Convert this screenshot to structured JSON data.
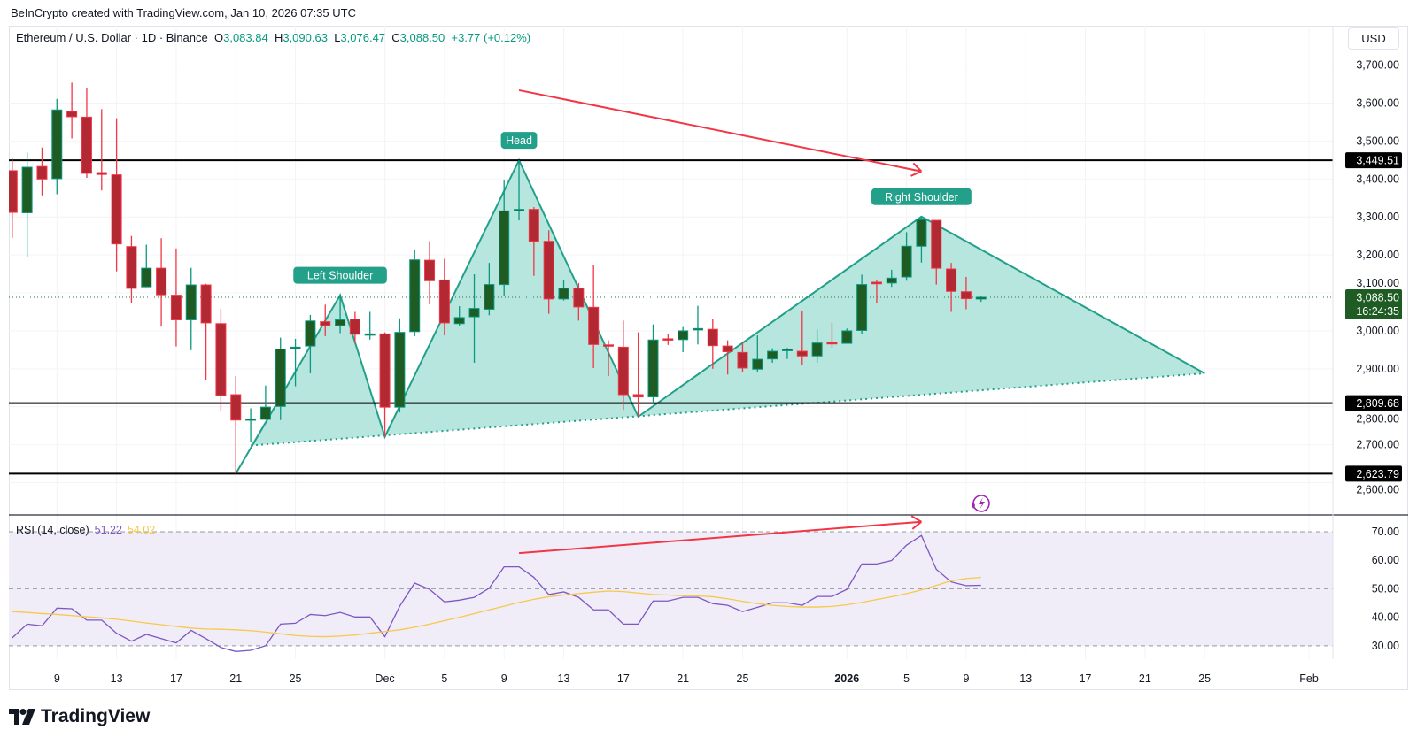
{
  "credit": "BeInCrypto created with TradingView.com, Jan 10, 2026 07:35 UTC",
  "legend": {
    "symbol": "Ethereum / U.S. Dollar · 1D · Binance",
    "o_label": "O",
    "o": "3,083.84",
    "h_label": "H",
    "h": "3,090.63",
    "l_label": "L",
    "l": "3,076.47",
    "c_label": "C",
    "c": "3,088.50",
    "change": "+3.77 (+0.12%)"
  },
  "currency_button": "USD",
  "rsi_legend": {
    "title": "RSI (14, close)",
    "rsi_value": "51.22",
    "ma_value": "54.02"
  },
  "brand": "TradingView",
  "colors": {
    "up_body": "#1e5c24",
    "up_border": "#089981",
    "down_body": "#b22833",
    "down_border": "#f23645",
    "pattern_fill": "#b2e5dc",
    "pattern_line": "#22a08a",
    "arrow": "#f23645",
    "rsi_line": "#7e57c2",
    "rsi_ma": "#f7c948",
    "price_line": "#1e7b3a"
  },
  "chart_data": [
    {
      "type": "candlestick",
      "title": "Ethereum / U.S. Dollar · 1D · Binance",
      "ylim": [
        2515,
        3804
      ],
      "price_ticks": [
        "3,700.00",
        "3,600.00",
        "3,500.00",
        "3,400.00",
        "3,300.00",
        "3,200.00",
        "3,100.00",
        "3,000.00",
        "2,900.00",
        "2,800.00",
        "2,700.00",
        "2,600.00"
      ],
      "price_tick_values": [
        3700,
        3600,
        3500,
        3400,
        3300,
        3200,
        3100,
        3000,
        2900,
        2800,
        2700,
        2600
      ],
      "time_ticks": [
        {
          "date": "2025-11-09",
          "label": "9"
        },
        {
          "date": "2025-11-13",
          "label": "13"
        },
        {
          "date": "2025-11-17",
          "label": "17"
        },
        {
          "date": "2025-11-21",
          "label": "21"
        },
        {
          "date": "2025-11-25",
          "label": "25"
        },
        {
          "date": "2025-12-01",
          "label": "Dec"
        },
        {
          "date": "2025-12-05",
          "label": "5"
        },
        {
          "date": "2025-12-09",
          "label": "9"
        },
        {
          "date": "2025-12-13",
          "label": "13"
        },
        {
          "date": "2025-12-17",
          "label": "17"
        },
        {
          "date": "2025-12-21",
          "label": "21"
        },
        {
          "date": "2025-12-25",
          "label": "25"
        },
        {
          "date": "2026-01-01",
          "label": "2026",
          "bold": true
        },
        {
          "date": "2026-01-05",
          "label": "5"
        },
        {
          "date": "2026-01-09",
          "label": "9"
        },
        {
          "date": "2026-01-13",
          "label": "13"
        },
        {
          "date": "2026-01-17",
          "label": "17"
        },
        {
          "date": "2026-01-21",
          "label": "21"
        },
        {
          "date": "2026-01-25",
          "label": "25"
        },
        {
          "date": "2026-02-01",
          "label": "Feb"
        }
      ],
      "candles_columns": [
        "date",
        "open",
        "high",
        "low",
        "close"
      ],
      "candles": [
        [
          "2025-11-06",
          3422,
          3454,
          3245,
          3312
        ],
        [
          "2025-11-07",
          3311,
          3470,
          3195,
          3431
        ],
        [
          "2025-11-08",
          3433,
          3483,
          3357,
          3400
        ],
        [
          "2025-11-09",
          3401,
          3611,
          3360,
          3582
        ],
        [
          "2025-11-10",
          3578,
          3654,
          3507,
          3564
        ],
        [
          "2025-11-11",
          3563,
          3640,
          3403,
          3415
        ],
        [
          "2025-11-12",
          3417,
          3584,
          3370,
          3412
        ],
        [
          "2025-11-13",
          3411,
          3560,
          3157,
          3229
        ],
        [
          "2025-11-14",
          3222,
          3250,
          3072,
          3112
        ],
        [
          "2025-11-15",
          3116,
          3227,
          3115,
          3165
        ],
        [
          "2025-11-16",
          3165,
          3244,
          3011,
          3095
        ],
        [
          "2025-11-17",
          3094,
          3217,
          2959,
          3029
        ],
        [
          "2025-11-18",
          3029,
          3166,
          2949,
          3121
        ],
        [
          "2025-11-19",
          3121,
          3124,
          2870,
          3021
        ],
        [
          "2025-11-20",
          3019,
          3058,
          2790,
          2830
        ],
        [
          "2025-11-21",
          2832,
          2881,
          2623.79,
          2765
        ],
        [
          "2025-11-22",
          2767,
          2796,
          2707,
          2768
        ],
        [
          "2025-11-23",
          2767,
          2856,
          2766,
          2799
        ],
        [
          "2025-11-24",
          2801,
          2982,
          2765,
          2952
        ],
        [
          "2025-11-25",
          2954,
          2979,
          2854,
          2957
        ],
        [
          "2025-11-26",
          2960,
          3042,
          2888,
          3026
        ],
        [
          "2025-11-27",
          3024,
          3069,
          2986,
          3014
        ],
        [
          "2025-11-28",
          3014,
          3094,
          2994,
          3029
        ],
        [
          "2025-11-29",
          3031,
          3050,
          2967,
          2991
        ],
        [
          "2025-11-30",
          2991,
          3050,
          2977,
          2992
        ],
        [
          "2025-12-01",
          2992,
          2996,
          2721,
          2799
        ],
        [
          "2025-12-02",
          2799,
          3033,
          2785,
          2996
        ],
        [
          "2025-12-03",
          2998,
          3213,
          2986,
          3187
        ],
        [
          "2025-12-04",
          3186,
          3236,
          3070,
          3132
        ],
        [
          "2025-12-05",
          3134,
          3190,
          2988,
          3021
        ],
        [
          "2025-12-06",
          3019,
          3065,
          3014,
          3035
        ],
        [
          "2025-12-07",
          3037,
          3149,
          2916,
          3059
        ],
        [
          "2025-12-08",
          3057,
          3179,
          3041,
          3122
        ],
        [
          "2025-12-09",
          3122,
          3397,
          3091,
          3316
        ],
        [
          "2025-12-10",
          3318,
          3449.51,
          3291,
          3320
        ],
        [
          "2025-12-11",
          3320,
          3326,
          3145,
          3236
        ],
        [
          "2025-12-12",
          3236,
          3265,
          3045,
          3084
        ],
        [
          "2025-12-13",
          3084,
          3134,
          3080,
          3112
        ],
        [
          "2025-12-14",
          3112,
          3126,
          3027,
          3063
        ],
        [
          "2025-12-15",
          3062,
          3174,
          2902,
          2964
        ],
        [
          "2025-12-16",
          2963,
          2975,
          2881,
          2961
        ],
        [
          "2025-12-17",
          2957,
          3027,
          2792,
          2832
        ],
        [
          "2025-12-18",
          2832,
          2996,
          2774,
          2826
        ],
        [
          "2025-12-19",
          2826,
          3017,
          2810,
          2976
        ],
        [
          "2025-12-20",
          2979,
          2991,
          2963,
          2977
        ],
        [
          "2025-12-21",
          2977,
          3010,
          2944,
          3000
        ],
        [
          "2025-12-22",
          3004,
          3066,
          2964,
          3006
        ],
        [
          "2025-12-23",
          3004,
          3031,
          2900,
          2961
        ],
        [
          "2025-12-24",
          2960,
          2975,
          2885,
          2945
        ],
        [
          "2025-12-25",
          2943,
          2968,
          2891,
          2902
        ],
        [
          "2025-12-26",
          2899,
          2988,
          2891,
          2925
        ],
        [
          "2025-12-27",
          2926,
          2954,
          2916,
          2946
        ],
        [
          "2025-12-28",
          2949,
          2955,
          2926,
          2951
        ],
        [
          "2025-12-29",
          2946,
          3053,
          2910,
          2934
        ],
        [
          "2025-12-30",
          2934,
          3004,
          2916,
          2968
        ],
        [
          "2025-12-31",
          2969,
          3021,
          2956,
          2967
        ],
        [
          "2026-01-01",
          2967,
          3006,
          2967,
          3000
        ],
        [
          "2026-01-02",
          3001,
          3148,
          2991,
          3122
        ],
        [
          "2026-01-03",
          3128,
          3134,
          3073,
          3124
        ],
        [
          "2026-01-04",
          3126,
          3161,
          3116,
          3139
        ],
        [
          "2026-01-05",
          3142,
          3260,
          3132,
          3223
        ],
        [
          "2026-01-06",
          3223,
          3301,
          3180,
          3293
        ],
        [
          "2026-01-07",
          3291,
          3291,
          3122,
          3165
        ],
        [
          "2026-01-08",
          3163,
          3179,
          3050,
          3104
        ],
        [
          "2026-01-09",
          3103,
          3142,
          3057,
          3084.73
        ],
        [
          "2026-01-10",
          3083.84,
          3090.63,
          3076.47,
          3088.5
        ]
      ],
      "horizontal_levels": [
        {
          "value": 3449.51,
          "label": "3,449.51"
        },
        {
          "value": 2809.68,
          "label": "2,809.68"
        },
        {
          "value": 2623.79,
          "label": "2,623.79"
        }
      ],
      "current_price": {
        "value": 3088.5,
        "label": "3,088.50",
        "countdown": "16:24:35"
      },
      "pattern": {
        "outline": [
          [
            "2025-11-21",
            2623.79
          ],
          [
            "2025-11-28",
            3094
          ],
          [
            "2025-12-01",
            2721
          ],
          [
            "2025-12-10",
            3449.51
          ],
          [
            "2025-12-18",
            2774
          ],
          [
            "2026-01-06",
            3301
          ],
          [
            "2026-01-25",
            2888
          ]
        ],
        "neckline_start": [
          "2025-11-22",
          2698
        ],
        "labels": [
          {
            "text": "Left Shoulder",
            "date": "2025-11-28",
            "value": 3094
          },
          {
            "text": "Head",
            "date": "2025-12-10",
            "value": 3449.51
          },
          {
            "text": "Right Shoulder",
            "date": "2026-01-06",
            "value": 3301
          }
        ]
      },
      "trend_arrow": {
        "from": [
          "2025-12-10",
          3634
        ],
        "to": [
          "2026-01-06",
          3420
        ]
      }
    },
    {
      "type": "line",
      "title": "RSI (14, close)",
      "ylim": [
        25.3,
        75.9
      ],
      "band": [
        30,
        70
      ],
      "ticks": [
        "70.00",
        "60.00",
        "50.00",
        "40.00",
        "30.00"
      ],
      "tick_values": [
        70,
        60,
        50,
        40,
        30
      ],
      "start_date": "2025-11-06",
      "series": [
        {
          "name": "RSI",
          "values": [
            32.8,
            37.6,
            37,
            43.2,
            43,
            39,
            39,
            34.4,
            31.6,
            34,
            32.5,
            31,
            35.4,
            32.5,
            29.4,
            28,
            28.4,
            30,
            37.6,
            37.9,
            41,
            40.6,
            41.7,
            40.1,
            40.1,
            33.2,
            43.9,
            52,
            49.8,
            45.4,
            46,
            47,
            50.2,
            57.7,
            57.7,
            54,
            48,
            48.9,
            47,
            42.6,
            42.6,
            37.6,
            37.6,
            45.7,
            45.7,
            47,
            47,
            44.8,
            44.2,
            42,
            43.5,
            45.1,
            45.1,
            44.2,
            47.3,
            47.3,
            49.8,
            58.7,
            58.7,
            59.9,
            65.3,
            68.7,
            56.8,
            52.4,
            51.1,
            51.22
          ]
        },
        {
          "name": "RSI-based MA",
          "values": [
            42,
            41.7,
            41.3,
            41,
            40.6,
            40.2,
            39.8,
            39.3,
            38.7,
            38,
            37.4,
            36.8,
            36.2,
            35.9,
            35.8,
            35.6,
            35.3,
            34.8,
            34.2,
            33.6,
            33.3,
            33.2,
            33.4,
            33.8,
            34.4,
            35,
            35.6,
            36.5,
            37.6,
            38.8,
            40,
            41.3,
            42.6,
            43.9,
            45.2,
            46.3,
            47.2,
            47.8,
            48.3,
            48.8,
            49.2,
            49,
            48.5,
            48,
            47.8,
            47.6,
            47.5,
            47.2,
            46.5,
            45.6,
            44.8,
            44.2,
            43.8,
            43.6,
            43.6,
            43.8,
            44.4,
            45.2,
            46.2,
            47.2,
            48.3,
            49.6,
            51.2,
            52.8,
            53.6,
            54.02
          ]
        }
      ],
      "trend_arrow": {
        "from": [
          "2025-12-10",
          62.5
        ],
        "to": [
          "2026-01-06",
          73.5
        ]
      }
    }
  ]
}
